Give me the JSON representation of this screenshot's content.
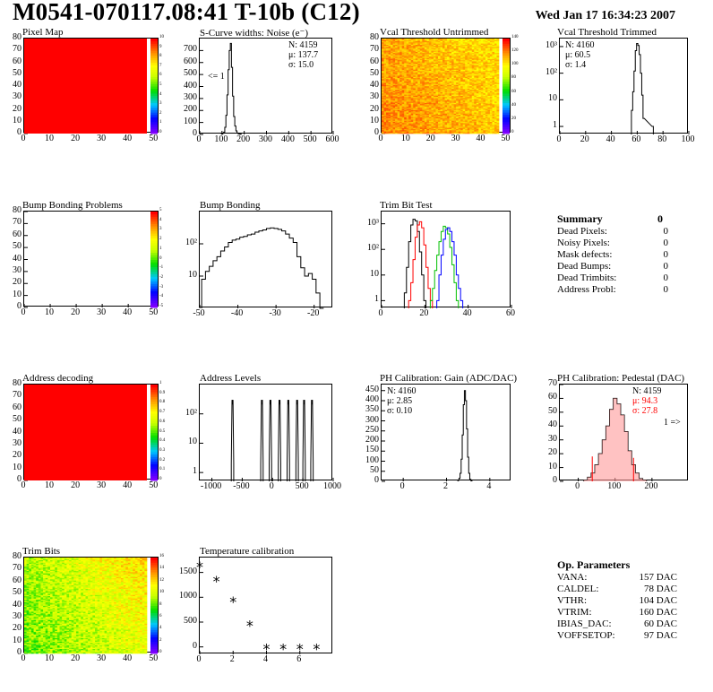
{
  "header": {
    "title": "M0541-070117.08:41 T-10b (C12)",
    "date": "Wed Jan 17 16:34:23 2007"
  },
  "panels": {
    "pixel_map": {
      "title": "Pixel Map"
    },
    "scurve": {
      "title": "S-Curve widths: Noise (e⁻)",
      "stat_n": "N: 4159",
      "stat_mu": "μ: 137.7",
      "stat_sigma": "σ: 15.0",
      "underflow": "<= 1"
    },
    "vcal_untrimmed": {
      "title": "Vcal Threshold Untrimmed"
    },
    "vcal_trimmed": {
      "title": "Vcal Threshold Trimmed",
      "stat_n": "N: 4160",
      "stat_mu": "μ: 60.5",
      "stat_sigma": "σ:  1.4"
    },
    "bump_problems": {
      "title": "Bump Bonding Problems"
    },
    "bump_bonding": {
      "title": "Bump Bonding"
    },
    "trim_bit_test": {
      "title": "Trim Bit Test"
    },
    "address_decoding": {
      "title": "Address decoding"
    },
    "address_levels": {
      "title": "Address Levels"
    },
    "ph_gain": {
      "title": "PH Calibration: Gain (ADC/DAC)",
      "stat_n": "N: 4160",
      "stat_mu": "μ: 2.85",
      "stat_sigma": "σ: 0.10"
    },
    "ph_pedestal": {
      "title": "PH Calibration: Pedestal (DAC)",
      "stat_n": "N: 4159",
      "stat_mu": "μ: 94.3",
      "stat_sigma": "σ: 27.8",
      "overflow": "1 =>"
    },
    "trim_bits": {
      "title": "Trim Bits"
    },
    "temperature": {
      "title": "Temperature calibration"
    }
  },
  "summary": {
    "title": "Summary",
    "value": "0",
    "rows": [
      {
        "label": "Dead Pixels:",
        "value": "0"
      },
      {
        "label": "Noisy Pixels:",
        "value": "0"
      },
      {
        "label": "Mask defects:",
        "value": "0"
      },
      {
        "label": "Dead Bumps:",
        "value": "0"
      },
      {
        "label": "Dead Trimbits:",
        "value": "0"
      },
      {
        "label": "Address Probl:",
        "value": "0"
      }
    ]
  },
  "op_params": {
    "title": "Op. Parameters",
    "rows": [
      {
        "label": "VANA:",
        "value": "157 DAC"
      },
      {
        "label": "CALDEL:",
        "value": "78 DAC"
      },
      {
        "label": "VTHR:",
        "value": "104 DAC"
      },
      {
        "label": "VTRIM:",
        "value": "160 DAC"
      },
      {
        "label": "IBIAS_DAC:",
        "value": "60 DAC"
      },
      {
        "label": "VOFFSETOP:",
        "value": "97 DAC"
      }
    ]
  },
  "colors": {
    "red": "#ff0000",
    "green": "#00c000",
    "blue": "#0000ff",
    "black": "#000000"
  },
  "chart_data": [
    {
      "id": "pixel_map",
      "type": "heatmap",
      "title": "Pixel Map",
      "xlim": [
        0,
        52
      ],
      "ylim": [
        0,
        80
      ],
      "xticks": [
        0,
        10,
        20,
        30,
        40,
        50
      ],
      "yticks": [
        0,
        10,
        20,
        30,
        40,
        50,
        60,
        70,
        80
      ],
      "zlim": [
        0,
        10
      ],
      "cb_ticks": [
        0,
        1,
        2,
        3,
        4,
        5,
        6,
        7,
        8,
        9,
        10
      ],
      "fill_value": 10
    },
    {
      "id": "scurve",
      "type": "bar",
      "title": "S-Curve widths: Noise (e⁻)",
      "xlim": [
        0,
        600
      ],
      "ylim": [
        0,
        800
      ],
      "xticks": [
        0,
        100,
        200,
        300,
        400,
        500,
        600
      ],
      "yticks": [
        0,
        100,
        200,
        300,
        400,
        500,
        600,
        700
      ],
      "x": [
        100,
        105,
        110,
        115,
        120,
        125,
        130,
        135,
        140,
        145,
        150,
        155,
        160,
        165,
        170,
        175,
        180,
        185
      ],
      "values": [
        3,
        8,
        20,
        60,
        160,
        330,
        540,
        700,
        760,
        560,
        320,
        150,
        70,
        30,
        12,
        6,
        3,
        1
      ]
    },
    {
      "id": "vcal_untrimmed",
      "type": "heatmap",
      "title": "Vcal Threshold Untrimmed",
      "xlim": [
        0,
        52
      ],
      "ylim": [
        0,
        80
      ],
      "xticks": [
        0,
        10,
        20,
        30,
        40,
        50
      ],
      "yticks": [
        0,
        10,
        20,
        30,
        40,
        50,
        60,
        70,
        80
      ],
      "zlim": [
        0,
        140
      ],
      "cb_ticks": [
        0,
        20,
        40,
        60,
        80,
        100,
        120,
        140
      ]
    },
    {
      "id": "vcal_trimmed",
      "type": "bar",
      "title": "Vcal Threshold Trimmed",
      "log_y": true,
      "xlim": [
        0,
        100
      ],
      "ylim": [
        0.5,
        2000
      ],
      "xticks": [
        0,
        20,
        40,
        60,
        80,
        100
      ],
      "yticks": [
        1,
        10,
        100,
        1000
      ],
      "x": [
        56,
        57,
        58,
        59,
        60,
        61,
        62,
        63,
        64,
        65,
        72
      ],
      "values": [
        4,
        20,
        120,
        700,
        1300,
        1100,
        500,
        100,
        15,
        2,
        1
      ]
    },
    {
      "id": "bump_problems",
      "type": "heatmap",
      "title": "Bump Bonding Problems",
      "xlim": [
        0,
        52
      ],
      "ylim": [
        0,
        80
      ],
      "xticks": [
        0,
        10,
        20,
        30,
        40,
        50
      ],
      "yticks": [
        0,
        10,
        20,
        30,
        40,
        50,
        60,
        70,
        80
      ],
      "zlim": [
        -5,
        5
      ],
      "cb_ticks": [
        -5,
        -4,
        -3,
        -2,
        -1,
        0,
        1,
        2,
        3,
        4,
        5
      ]
    },
    {
      "id": "bump_bonding",
      "type": "bar",
      "title": "Bump Bonding",
      "log_y": true,
      "xlim": [
        -50,
        -15
      ],
      "ylim": [
        1,
        1000
      ],
      "xticks": [
        -50,
        -40,
        -30,
        -20
      ],
      "yticks": [
        10,
        100
      ],
      "x": [
        -49,
        -48,
        -47,
        -46,
        -45,
        -44,
        -43,
        -42,
        -41,
        -40,
        -39,
        -38,
        -37,
        -36,
        -35,
        -34,
        -33,
        -32,
        -31,
        -30,
        -29,
        -28,
        -27,
        -26,
        -25,
        -24,
        -23,
        -22,
        -21,
        -20,
        -19,
        -18
      ],
      "values": [
        8,
        14,
        20,
        30,
        40,
        60,
        80,
        110,
        130,
        140,
        160,
        170,
        190,
        200,
        230,
        250,
        270,
        300,
        310,
        300,
        280,
        250,
        200,
        150,
        110,
        40,
        18,
        10,
        12,
        8,
        3,
        1
      ]
    },
    {
      "id": "trim_bit_test",
      "type": "bar",
      "title": "Trim Bit Test",
      "log_y": true,
      "xlim": [
        0,
        60
      ],
      "ylim": [
        0.5,
        3000
      ],
      "xticks": [
        0,
        20,
        40,
        60
      ],
      "yticks": [
        1,
        10,
        100,
        1000
      ],
      "series": [
        {
          "color": "#000000",
          "x": [
            11,
            12,
            13,
            14,
            15,
            16,
            17,
            18,
            19,
            20
          ],
          "values": [
            2,
            20,
            200,
            900,
            1500,
            1300,
            500,
            80,
            10,
            1
          ]
        },
        {
          "color": "#ff0000",
          "x": [
            13,
            14,
            15,
            16,
            17,
            18,
            19,
            20,
            21,
            22,
            23
          ],
          "values": [
            1,
            5,
            40,
            300,
            900,
            1200,
            700,
            150,
            20,
            3,
            1
          ]
        },
        {
          "color": "#00c000",
          "x": [
            23,
            24,
            25,
            26,
            27,
            28,
            29,
            30,
            31,
            32,
            33,
            34,
            35
          ],
          "values": [
            1,
            3,
            15,
            60,
            200,
            500,
            800,
            700,
            400,
            120,
            25,
            5,
            1
          ]
        },
        {
          "color": "#0000ff",
          "x": [
            26,
            27,
            28,
            29,
            30,
            31,
            32,
            33,
            34,
            35,
            36,
            37
          ],
          "values": [
            1,
            10,
            60,
            250,
            600,
            700,
            500,
            200,
            60,
            10,
            3,
            1
          ]
        }
      ]
    },
    {
      "id": "address_decoding",
      "type": "heatmap",
      "title": "Address decoding",
      "xlim": [
        0,
        52
      ],
      "ylim": [
        0,
        80
      ],
      "xticks": [
        0,
        10,
        20,
        30,
        40,
        50
      ],
      "yticks": [
        0,
        10,
        20,
        30,
        40,
        50,
        60,
        70,
        80
      ],
      "zlim": [
        0,
        1
      ],
      "cb_ticks": [
        0,
        0.1,
        0.2,
        0.3,
        0.4,
        0.5,
        0.6,
        0.7,
        0.8,
        0.9,
        1
      ],
      "fill_value": 1
    },
    {
      "id": "address_levels",
      "type": "bar",
      "title": "Address Levels",
      "log_y": true,
      "xlim": [
        -1200,
        1000
      ],
      "ylim": [
        0.5,
        1000
      ],
      "xticks": [
        -1000,
        -500,
        0,
        500,
        1000
      ],
      "yticks": [
        1,
        10,
        100
      ],
      "peaks": [
        -660,
        -175,
        -35,
        115,
        260,
        405,
        520,
        650
      ],
      "peak_height": 300,
      "peak_width": 40
    },
    {
      "id": "ph_gain",
      "type": "bar",
      "title": "PH Calibration: Gain (ADC/DAC)",
      "xlim": [
        -1,
        5
      ],
      "ylim": [
        0,
        480
      ],
      "xticks": [
        0,
        2,
        4
      ],
      "yticks": [
        0,
        50,
        100,
        150,
        200,
        250,
        300,
        350,
        400,
        450
      ],
      "x": [
        2.55,
        2.6,
        2.65,
        2.7,
        2.75,
        2.8,
        2.85,
        2.9,
        2.95,
        3.0,
        3.05,
        3.1,
        3.15
      ],
      "values": [
        5,
        15,
        40,
        110,
        230,
        380,
        450,
        400,
        260,
        120,
        40,
        10,
        3
      ]
    },
    {
      "id": "ph_pedestal",
      "type": "bar",
      "title": "PH Calibration: Pedestal (DAC)",
      "xlim": [
        -50,
        300
      ],
      "ylim": [
        0,
        70
      ],
      "xticks": [
        0,
        100,
        200
      ],
      "yticks": [
        0,
        10,
        20,
        30,
        40,
        50,
        60,
        70
      ],
      "x": [
        20,
        30,
        40,
        50,
        60,
        70,
        80,
        90,
        100,
        110,
        120,
        130,
        140,
        150,
        160,
        170,
        180
      ],
      "values": [
        1,
        3,
        6,
        12,
        20,
        30,
        40,
        52,
        60,
        56,
        48,
        36,
        22,
        12,
        6,
        2,
        1
      ],
      "red_lines": [
        {
          "x": 38,
          "y": 18
        },
        {
          "x": 150,
          "y": 17
        }
      ]
    },
    {
      "id": "trim_bits",
      "type": "heatmap",
      "title": "Trim Bits",
      "xlim": [
        0,
        52
      ],
      "ylim": [
        0,
        80
      ],
      "xticks": [
        0,
        10,
        20,
        30,
        40,
        50
      ],
      "yticks": [
        0,
        10,
        20,
        30,
        40,
        50,
        60,
        70,
        80
      ],
      "zlim": [
        0,
        16
      ],
      "cb_ticks": [
        0,
        2,
        4,
        6,
        8,
        10,
        12,
        14,
        16
      ]
    },
    {
      "id": "temperature",
      "type": "scatter",
      "title": "Temperature calibration",
      "xlim": [
        0,
        8
      ],
      "ylim": [
        -150,
        1800
      ],
      "xticks": [
        0,
        2,
        4,
        6
      ],
      "yticks": [
        0,
        500,
        1000,
        1500
      ],
      "x": [
        0,
        1,
        2,
        3,
        4,
        5,
        6,
        7
      ],
      "values": [
        1600,
        1310,
        900,
        420,
        -50,
        -50,
        -50,
        -50
      ]
    }
  ]
}
